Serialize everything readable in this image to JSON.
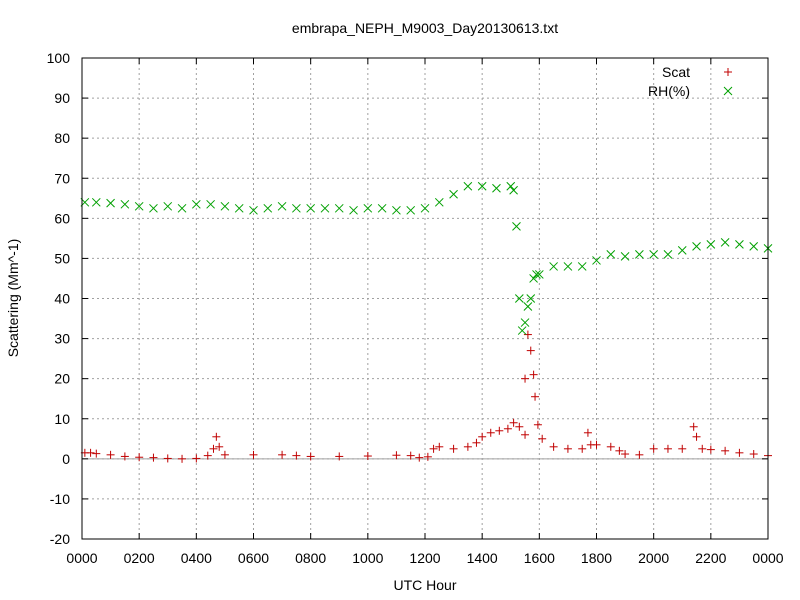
{
  "chart_data": {
    "type": "scatter",
    "title": "embrapa_NEPH_M9003_Day20130613.txt",
    "xlabel": "UTC Hour",
    "ylabel": "Scattering (Mm^-1)",
    "xlim": [
      0,
      24
    ],
    "ylim": [
      -20,
      100
    ],
    "x_ticks": [
      0,
      2,
      4,
      6,
      8,
      10,
      12,
      14,
      16,
      18,
      20,
      22,
      24
    ],
    "x_tick_labels": [
      "0000",
      "0200",
      "0400",
      "0600",
      "0800",
      "1000",
      "1200",
      "1400",
      "1600",
      "1800",
      "2000",
      "2200",
      "0000"
    ],
    "y_ticks": [
      -20,
      -10,
      0,
      10,
      20,
      30,
      40,
      50,
      60,
      70,
      80,
      90,
      100
    ],
    "y_tick_labels": [
      "-20",
      "-10",
      "0",
      "10",
      "20",
      "30",
      "40",
      "50",
      "60",
      "70",
      "80",
      "90",
      "100"
    ],
    "grid": true,
    "zero_line": true,
    "legend_position": "top-right",
    "series": [
      {
        "name": "Scat",
        "marker": "plus",
        "color": "#c00000",
        "points": [
          [
            0.1,
            1.5
          ],
          [
            0.3,
            1.5
          ],
          [
            0.5,
            1.3
          ],
          [
            1.0,
            1.0
          ],
          [
            1.5,
            0.6
          ],
          [
            2.0,
            0.4
          ],
          [
            2.5,
            0.3
          ],
          [
            3.0,
            0.1
          ],
          [
            3.5,
            0.0
          ],
          [
            4.0,
            0.1
          ],
          [
            4.4,
            0.8
          ],
          [
            4.6,
            2.5
          ],
          [
            4.7,
            5.5
          ],
          [
            4.8,
            3.0
          ],
          [
            5.0,
            1.0
          ],
          [
            6.0,
            1.0
          ],
          [
            7.0,
            1.0
          ],
          [
            7.5,
            0.8
          ],
          [
            8.0,
            0.6
          ],
          [
            9.0,
            0.6
          ],
          [
            10.0,
            0.7
          ],
          [
            11.0,
            0.9
          ],
          [
            11.5,
            0.8
          ],
          [
            11.8,
            0.3
          ],
          [
            12.1,
            0.5
          ],
          [
            12.3,
            2.5
          ],
          [
            12.5,
            3.0
          ],
          [
            13.0,
            2.5
          ],
          [
            13.5,
            3.0
          ],
          [
            13.8,
            4.0
          ],
          [
            14.0,
            5.5
          ],
          [
            14.3,
            6.5
          ],
          [
            14.6,
            7.0
          ],
          [
            14.9,
            7.5
          ],
          [
            15.1,
            9.0
          ],
          [
            15.3,
            8.0
          ],
          [
            15.5,
            6.0
          ],
          [
            15.6,
            31.0
          ],
          [
            15.7,
            27.0
          ],
          [
            15.5,
            20.0
          ],
          [
            15.8,
            21.0
          ],
          [
            15.85,
            15.5
          ],
          [
            15.95,
            8.5
          ],
          [
            16.1,
            5.0
          ],
          [
            16.5,
            3.0
          ],
          [
            17.0,
            2.5
          ],
          [
            17.5,
            2.5
          ],
          [
            17.7,
            6.5
          ],
          [
            17.8,
            3.5
          ],
          [
            18.0,
            3.5
          ],
          [
            18.5,
            3.0
          ],
          [
            18.8,
            2.0
          ],
          [
            19.0,
            1.2
          ],
          [
            19.5,
            1.0
          ],
          [
            20.0,
            2.5
          ],
          [
            20.5,
            2.5
          ],
          [
            21.0,
            2.5
          ],
          [
            21.4,
            8.0
          ],
          [
            21.5,
            5.5
          ],
          [
            21.7,
            2.5
          ],
          [
            22.0,
            2.3
          ],
          [
            22.5,
            2.0
          ],
          [
            23.0,
            1.5
          ],
          [
            23.5,
            1.2
          ],
          [
            24.0,
            0.8
          ]
        ]
      },
      {
        "name": "RH(%)",
        "marker": "cross",
        "color": "#00a000",
        "points": [
          [
            0.1,
            64.0
          ],
          [
            0.5,
            64.0
          ],
          [
            1.0,
            63.8
          ],
          [
            1.5,
            63.5
          ],
          [
            2.0,
            63.0
          ],
          [
            2.5,
            62.5
          ],
          [
            3.0,
            63.0
          ],
          [
            3.5,
            62.5
          ],
          [
            4.0,
            63.5
          ],
          [
            4.5,
            63.5
          ],
          [
            5.0,
            63.0
          ],
          [
            5.5,
            62.5
          ],
          [
            6.0,
            62.0
          ],
          [
            6.5,
            62.5
          ],
          [
            7.0,
            63.0
          ],
          [
            7.5,
            62.5
          ],
          [
            8.0,
            62.5
          ],
          [
            8.5,
            62.5
          ],
          [
            9.0,
            62.5
          ],
          [
            9.5,
            62.0
          ],
          [
            10.0,
            62.5
          ],
          [
            10.5,
            62.5
          ],
          [
            11.0,
            62.0
          ],
          [
            11.5,
            62.0
          ],
          [
            12.0,
            62.5
          ],
          [
            12.5,
            64.0
          ],
          [
            13.0,
            66.0
          ],
          [
            13.5,
            68.0
          ],
          [
            14.0,
            68.0
          ],
          [
            14.5,
            67.5
          ],
          [
            15.0,
            68.0
          ],
          [
            15.1,
            67.0
          ],
          [
            15.2,
            58.0
          ],
          [
            15.3,
            40.0
          ],
          [
            15.4,
            32.0
          ],
          [
            15.5,
            34.0
          ],
          [
            15.6,
            38.0
          ],
          [
            15.7,
            40.0
          ],
          [
            15.8,
            45.0
          ],
          [
            15.9,
            46.0
          ],
          [
            16.0,
            46.0
          ],
          [
            16.5,
            48.0
          ],
          [
            17.0,
            48.0
          ],
          [
            17.5,
            48.0
          ],
          [
            18.0,
            49.5
          ],
          [
            18.5,
            51.0
          ],
          [
            19.0,
            50.5
          ],
          [
            19.5,
            51.0
          ],
          [
            20.0,
            51.0
          ],
          [
            20.5,
            51.0
          ],
          [
            21.0,
            52.0
          ],
          [
            21.5,
            53.0
          ],
          [
            22.0,
            53.5
          ],
          [
            22.5,
            54.0
          ],
          [
            23.0,
            53.5
          ],
          [
            23.5,
            53.0
          ],
          [
            24.0,
            52.5
          ]
        ]
      }
    ]
  }
}
